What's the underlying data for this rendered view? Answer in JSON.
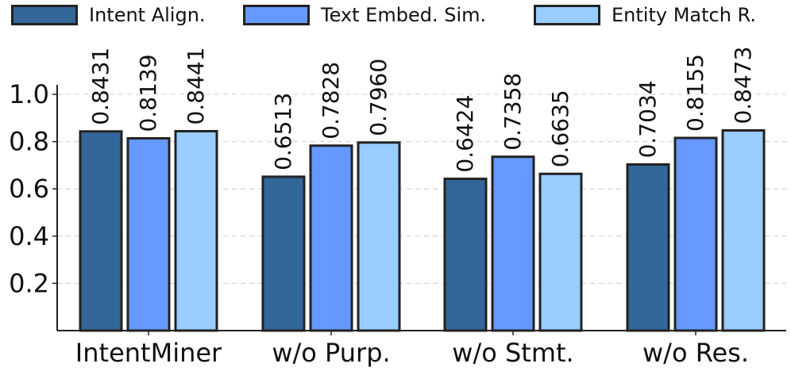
{
  "chart_data": {
    "type": "bar",
    "categories": [
      "IntentMiner",
      "w/o Purp.",
      "w/o Stmt.",
      "w/o Res."
    ],
    "series": [
      {
        "name": "Intent Align.",
        "color": "#336699",
        "values": [
          0.8431,
          0.6513,
          0.6424,
          0.7034
        ]
      },
      {
        "name": "Text Embed. Sim.",
        "color": "#6699FF",
        "values": [
          0.8139,
          0.7828,
          0.7358,
          0.8155
        ]
      },
      {
        "name": "Entity Match R.",
        "color": "#99CCFF",
        "values": [
          0.8441,
          0.796,
          0.6635,
          0.8473
        ]
      }
    ],
    "value_labels": [
      [
        "0.8431",
        "0.6513",
        "0.6424",
        "0.7034"
      ],
      [
        "0.8139",
        "0.7828",
        "0.7358",
        "0.8155"
      ],
      [
        "0.8441",
        "0.7960",
        "0.6635",
        "0.8473"
      ]
    ],
    "y_ticks": [
      "0.2",
      "0.4",
      "0.6",
      "0.8",
      "1.0"
    ],
    "ylim": [
      0,
      1.0
    ],
    "grid": "horizontal dashed",
    "legend_position": "top"
  }
}
